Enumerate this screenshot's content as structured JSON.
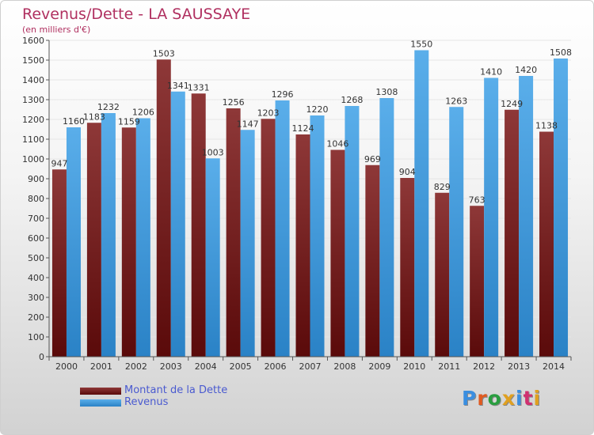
{
  "title": "Revenus/Dette - LA SAUSSAYE",
  "subtitle": "(en milliers d'€)",
  "colors": {
    "dette_dark": "#5a0a0a",
    "dette_light": "#8e3838",
    "revenus_dark": "#2a82c6",
    "revenus_light": "#5aaeea"
  },
  "legend": [
    {
      "label": "Montant de la Dette",
      "series": "dette"
    },
    {
      "label": "Revenus",
      "series": "revenus"
    }
  ],
  "logo": {
    "text": "Proxiti",
    "letters": [
      "P",
      "r",
      "o",
      "x",
      "i",
      "t",
      "i"
    ]
  },
  "chart_data": {
    "type": "bar",
    "title": "Revenus/Dette - LA SAUSSAYE",
    "subtitle": "(en milliers d'€)",
    "xlabel": "",
    "ylabel": "",
    "ylim": [
      0,
      1600
    ],
    "yticks": [
      0,
      100,
      200,
      300,
      400,
      500,
      600,
      700,
      800,
      900,
      1000,
      1100,
      1200,
      1300,
      1400,
      1500,
      1600
    ],
    "grid": true,
    "legend_position": "bottom-left",
    "categories": [
      "2000",
      "2001",
      "2002",
      "2003",
      "2004",
      "2005",
      "2006",
      "2007",
      "2008",
      "2009",
      "2010",
      "2011",
      "2012",
      "2013",
      "2014"
    ],
    "series": [
      {
        "name": "Montant de la Dette",
        "values": [
          947,
          1183,
          1159,
          1503,
          1331,
          1256,
          1203,
          1124,
          1046,
          969,
          904,
          829,
          763,
          1249,
          1138
        ]
      },
      {
        "name": "Revenus",
        "values": [
          1160,
          1232,
          1206,
          1341,
          1003,
          1147,
          1296,
          1220,
          1268,
          1308,
          1550,
          1263,
          1410,
          1420,
          1508
        ]
      }
    ]
  }
}
